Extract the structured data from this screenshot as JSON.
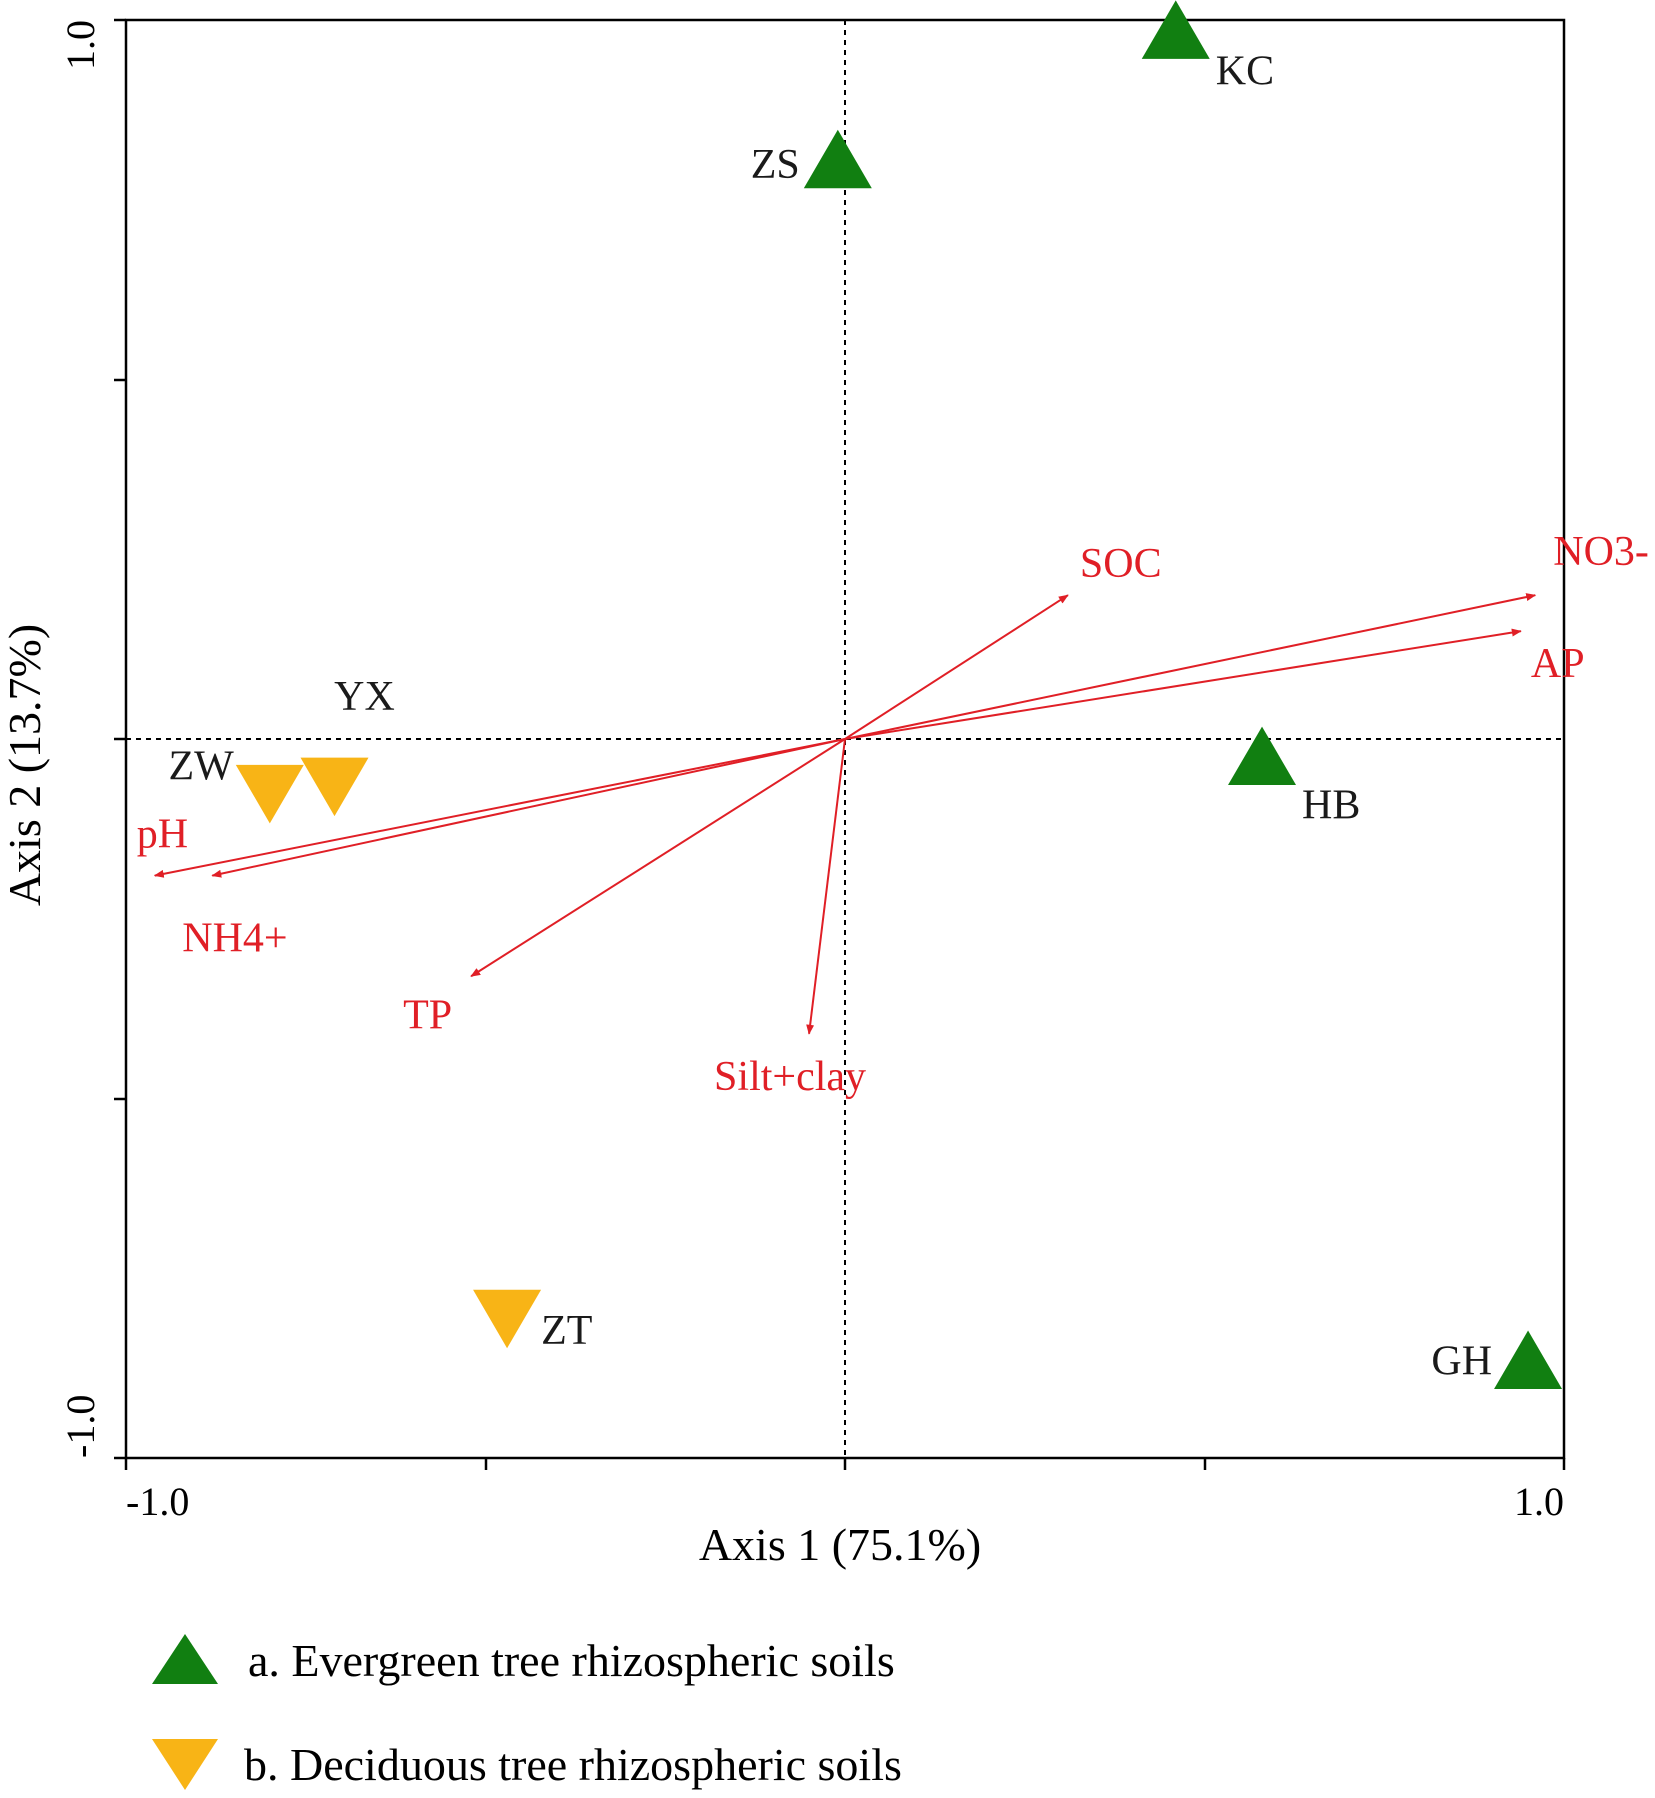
{
  "colors": {
    "evergreen": "#117f11",
    "deciduous": "#f8b416",
    "vector": "#e01f26",
    "axis": "#000000"
  },
  "chart_data": {
    "type": "scatter",
    "subtype": "RDA biplot",
    "xlabel": "Axis 1 (75.1%)",
    "ylabel": "Axis 2 (13.7%)",
    "xlim": [
      -1.0,
      1.0
    ],
    "ylim": [
      -1.0,
      1.0
    ],
    "x_tick_labels": [
      "-1.0",
      "1.0"
    ],
    "y_tick_labels": [
      "-1.0",
      "1.0"
    ],
    "grid": false,
    "reference_lines": "dashed zero lines",
    "legend_placement": "below",
    "legend": [
      {
        "label": "a. Evergreen tree rhizospheric soils",
        "marker": "triangle-up",
        "color": "#117f11"
      },
      {
        "label": "b. Deciduous tree rhizospheric soils",
        "marker": "triangle-down",
        "color": "#f8b416"
      }
    ],
    "series": [
      {
        "group": "evergreen",
        "marker": "triangle-up",
        "points": [
          {
            "label": "KC",
            "x": 0.46,
            "y": 0.98
          },
          {
            "label": "ZS",
            "x": -0.01,
            "y": 0.8
          },
          {
            "label": "HB",
            "x": 0.58,
            "y": -0.03
          },
          {
            "label": "GH",
            "x": 0.95,
            "y": -0.87
          }
        ]
      },
      {
        "group": "deciduous",
        "marker": "triangle-down",
        "points": [
          {
            "label": "YX",
            "x": -0.71,
            "y": -0.06
          },
          {
            "label": "ZW",
            "x": -0.8,
            "y": -0.07
          },
          {
            "label": "ZT",
            "x": -0.47,
            "y": -0.8
          }
        ]
      }
    ],
    "vectors": [
      {
        "label": "NO3-",
        "x": 0.96,
        "y": 0.2
      },
      {
        "label": "AP",
        "x": 0.94,
        "y": 0.15
      },
      {
        "label": "SOC",
        "x": 0.31,
        "y": 0.2
      },
      {
        "label": "pH",
        "x": -0.96,
        "y": -0.19
      },
      {
        "label": "NH4+",
        "x": -0.88,
        "y": -0.19
      },
      {
        "label": "TP",
        "x": -0.52,
        "y": -0.33
      },
      {
        "label": "Silt+clay",
        "x": -0.05,
        "y": -0.41
      }
    ]
  }
}
